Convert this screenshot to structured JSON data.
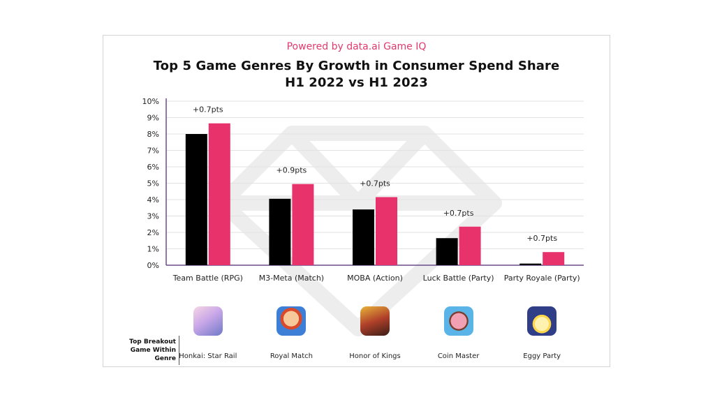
{
  "header": {
    "brand": "Powered by data.ai Game IQ",
    "title_line1": "Top 5 Game Genres By Growth in Consumer Spend Share",
    "title_line2": "H1 2022 vs H1 2023"
  },
  "chart_data": {
    "type": "bar",
    "title": "Top 5 Game Genres By Growth in Consumer Spend Share H1 2022 vs H1 2023",
    "categories": [
      "Team Battle (RPG)",
      "M3-Meta (Match)",
      "MOBA (Action)",
      "Luck Battle (Party)",
      "Party Royale (Party)"
    ],
    "series": [
      {
        "values": [
          8.0,
          4.05,
          3.4,
          1.65,
          0.1
        ],
        "color": "#000000"
      },
      {
        "values": [
          8.65,
          4.95,
          4.15,
          2.35,
          0.8
        ],
        "color": "#e8326b"
      }
    ],
    "annotations": [
      "+0.7pts",
      "+0.9pts",
      "+0.7pts",
      "+0.7pts",
      "+0.7pts"
    ],
    "yticks": [
      "0%",
      "1%",
      "2%",
      "3%",
      "4%",
      "5%",
      "6%",
      "7%",
      "8%",
      "9%",
      "10%"
    ],
    "ylim": [
      0,
      10
    ],
    "grid": true,
    "legend": "none"
  },
  "breakout": {
    "label": "Top Breakout Game Within Genre",
    "games": [
      {
        "name": "Honkai: Star Rail",
        "icon": "honkai-star-rail-icon"
      },
      {
        "name": "Royal Match",
        "icon": "royal-match-icon"
      },
      {
        "name": "Honor of Kings",
        "icon": "honor-of-kings-icon"
      },
      {
        "name": "Coin Master",
        "icon": "coin-master-icon"
      },
      {
        "name": "Eggy Party",
        "icon": "eggy-party-icon"
      }
    ]
  }
}
